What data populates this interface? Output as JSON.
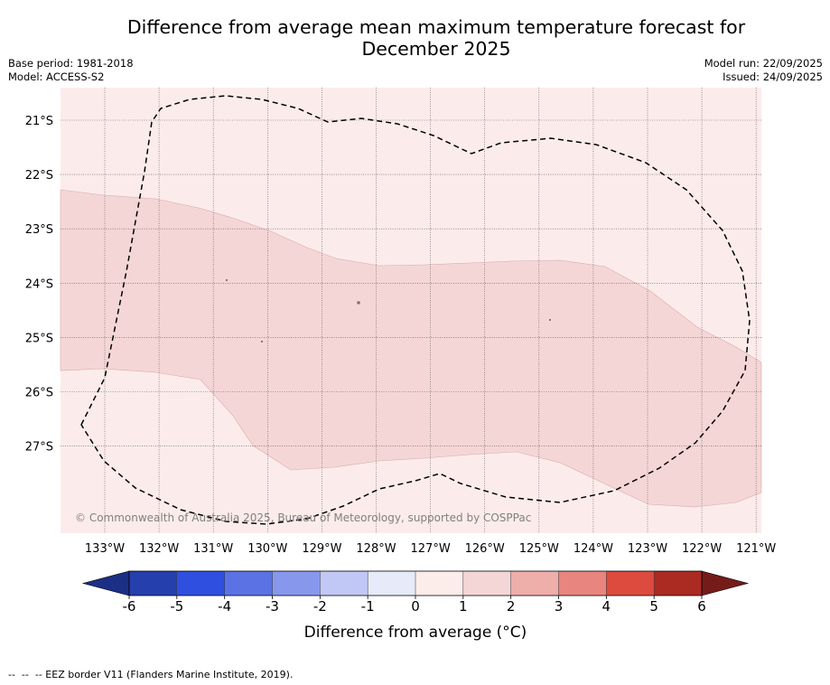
{
  "header": {
    "title_line1": "Difference from average mean maximum temperature forecast for",
    "title_line2": "December 2025",
    "base_period": "Base period: 1981-2018",
    "model": "Model: ACCESS-S2",
    "model_run": "Model run: 22/09/2025",
    "issued": "Issued: 24/09/2025"
  },
  "map": {
    "lat_labels": [
      "21°S",
      "22°S",
      "23°S",
      "24°S",
      "25°S",
      "26°S",
      "27°S"
    ],
    "lon_labels": [
      "133°W",
      "132°W",
      "131°W",
      "130°W",
      "129°W",
      "128°W",
      "127°W",
      "126°W",
      "125°W",
      "124°W",
      "123°W",
      "122°W",
      "121°W"
    ],
    "copyright": "© Commonwealth of Australia 2025, Bureau of Meteorology, supported by COSPPac",
    "background_anomaly_class": "0 to 1",
    "core_anomaly_class": "1 to 2",
    "eez_border_style": "dashed"
  },
  "colorbar": {
    "ticks": [
      "-6",
      "-5",
      "-4",
      "-3",
      "-2",
      "-1",
      "0",
      "1",
      "2",
      "3",
      "4",
      "5",
      "6"
    ],
    "colors": [
      "#253fad",
      "#2f4fe0",
      "#5a72e4",
      "#8798ec",
      "#c1c8f5",
      "#e7eaf8",
      "#fcecea",
      "#f5d6d6",
      "#eeaeaa",
      "#e8857f",
      "#dc4b3e",
      "#ab2a22"
    ],
    "under_color": "#1c2f86",
    "over_color": "#751c1b",
    "label": "Difference from average (°C)"
  },
  "legend": {
    "eez_text": "--  --  -- EEZ border V11 (Flanders Marine Institute, 2019)."
  }
}
